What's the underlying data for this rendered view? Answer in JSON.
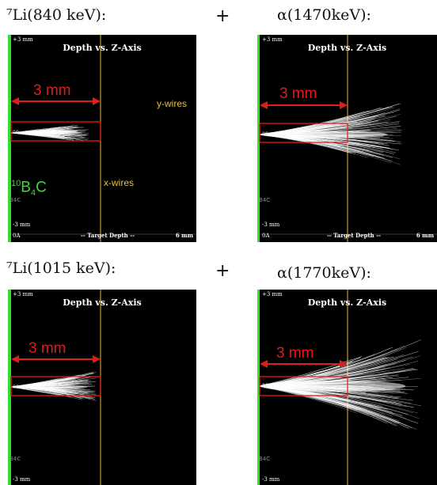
{
  "captions": {
    "top_left": "⁷Li(840 keV):",
    "top_right": "α(1470keV):",
    "bottom_left": "⁷Li(1015 keV):",
    "bottom_right": "α(1770keV):",
    "plus": "+"
  },
  "panel": {
    "title": "Depth vs. Z-Axis",
    "y_top": "+3 mm",
    "y_bottom": "-3 mm",
    "x_left": "0A",
    "x_middle": "-- Target Depth --",
    "x_right": "6 mm",
    "zero_mark": "00",
    "side_text": "B4C"
  },
  "annotations": {
    "range_label": "3 mm",
    "y_wires": "y-wires",
    "x_wires": "x-wires",
    "material": {
      "mass": "10",
      "element1": "B",
      "sub": "4",
      "element2": "C"
    }
  },
  "colors": {
    "panel_bg": "#000000",
    "converter_layer": "#33dd33",
    "range_arrow": "#e21b1b",
    "wire_line": "#c9952a",
    "tracks": "#ffffff"
  }
}
